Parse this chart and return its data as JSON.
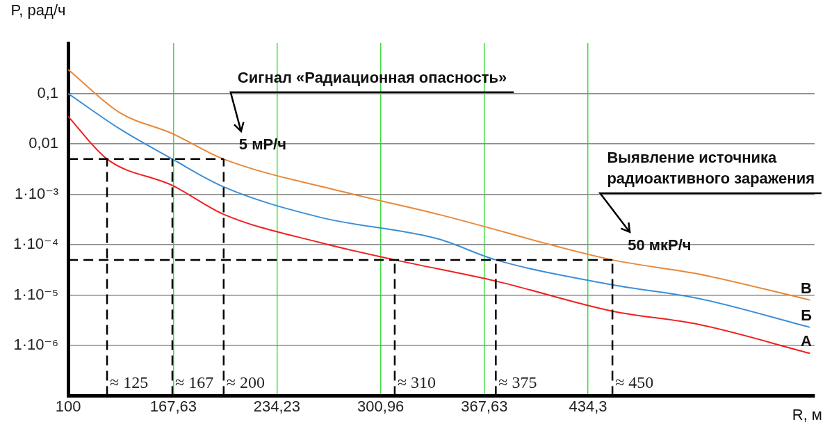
{
  "chart_data": {
    "type": "line",
    "xlabel": "R, м",
    "ylabel": "P, рад/ч",
    "log": "y",
    "grid": true,
    "xlim": [
      100,
      580
    ],
    "ylim": [
      1e-07,
      1
    ],
    "xticks": [
      100,
      {
        "value": 167.63,
        "label": "167,63"
      },
      {
        "value": 234.23,
        "label": "234,23"
      },
      {
        "value": 300.96,
        "label": "300,96"
      },
      {
        "value": 367.63,
        "label": "367,63"
      },
      {
        "value": 434.3,
        "label": "434,3"
      }
    ],
    "yticks": [
      {
        "value": 0.1,
        "label": "0,1"
      },
      {
        "value": 0.01,
        "label": "0,01"
      },
      {
        "value": 0.001,
        "label": "1·10⁻³"
      },
      {
        "value": 0.0001,
        "label": "1·10⁻⁴"
      },
      {
        "value": 1e-05,
        "label": "1·10⁻⁵"
      },
      {
        "value": 1e-06,
        "label": "1·10⁻⁶"
      }
    ],
    "series": [
      {
        "name": "В",
        "color": "#e8883a",
        "x": [
          100,
          133,
          167,
          200,
          278,
          338,
          450,
          506,
          577
        ],
        "values": [
          0.3,
          0.042,
          0.016,
          0.005,
          0.0011,
          0.0004,
          5e-05,
          2.6e-05,
          8e-06
        ]
      },
      {
        "name": "Б",
        "color": "#3d8fd6",
        "x": [
          100,
          133,
          167,
          200,
          262,
          338,
          375,
          450,
          506,
          577
        ],
        "values": [
          0.1,
          0.02,
          0.005,
          0.0014,
          0.00035,
          0.00013,
          5e-05,
          1.6e-05,
          8.5e-06,
          2.3e-06
        ]
      },
      {
        "name": "А",
        "color": "#f02020",
        "x": [
          100,
          125,
          167,
          200,
          262,
          310,
          375,
          450,
          506,
          577
        ],
        "values": [
          0.035,
          0.005,
          0.0015,
          0.0004,
          0.00011,
          5e-05,
          1.9e-05,
          4.8e-06,
          2.6e-06,
          7e-07
        ]
      }
    ],
    "ref_lines": [
      {
        "axis": "y",
        "value": 0.005,
        "label": null,
        "color": "#000000",
        "line_style": "dashed"
      },
      {
        "axis": "y",
        "value": 5e-05,
        "label": null,
        "color": "#000000",
        "line_style": "dashed"
      },
      {
        "axis": "x",
        "value": 125,
        "label": "≈ 125",
        "color": "#000000",
        "line_style": "dashed"
      },
      {
        "axis": "x",
        "value": 167,
        "label": "≈ 167",
        "color": "#000000",
        "line_style": "dashed"
      },
      {
        "axis": "x",
        "value": 200,
        "label": "≈ 200",
        "color": "#000000",
        "line_style": "dashed"
      },
      {
        "axis": "x",
        "value": 310,
        "label": "≈ 310",
        "color": "#000000",
        "line_style": "dashed"
      },
      {
        "axis": "x",
        "value": 375,
        "label": "≈ 375",
        "color": "#000000",
        "line_style": "dashed"
      },
      {
        "axis": "x",
        "value": 450,
        "label": "≈ 450",
        "color": "#000000",
        "line_style": "dashed"
      }
    ],
    "annotations": [
      "Сигнал «Радиационная опасность»",
      {
        "text": "5 мР/ч",
        "x": 200,
        "y": 0.005
      },
      "Выявление источника радиоактивного заражения",
      {
        "text": "50 мкР/ч",
        "x": 450,
        "y": 5e-05
      }
    ]
  }
}
